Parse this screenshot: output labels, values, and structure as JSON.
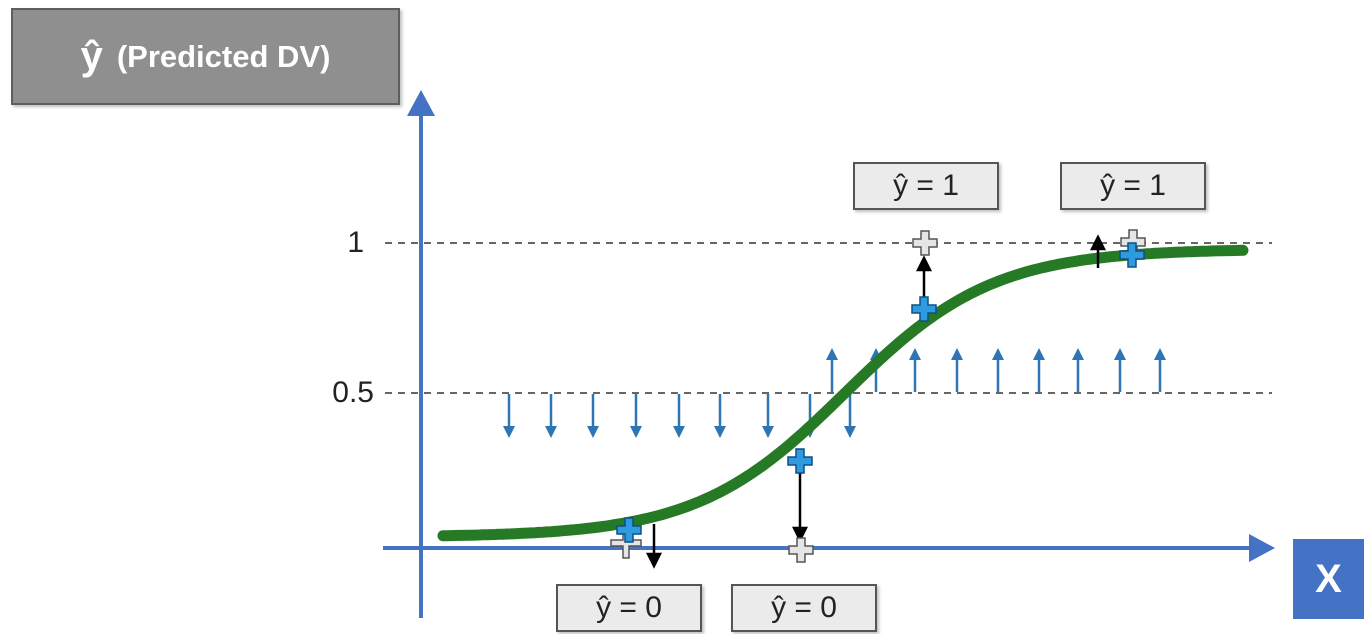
{
  "y_axis_label": {
    "symbol": "ŷ",
    "text": "(Predicted DV)"
  },
  "x_axis_label": "X",
  "ticks": {
    "one": "1",
    "half": "0.5"
  },
  "predictions": [
    {
      "id": "pred-1",
      "label": "ŷ = 0"
    },
    {
      "id": "pred-2",
      "label": "ŷ = 0"
    },
    {
      "id": "pred-3",
      "label": "ŷ = 1"
    },
    {
      "id": "pred-4",
      "label": "ŷ = 1"
    }
  ],
  "colors": {
    "axis": "#4472c4",
    "curve": "#267a26",
    "arrow": "#2e75b6",
    "point": "#2e9be0",
    "projected_point": "#e5e5e5",
    "label_bg": "#ebebeb",
    "header_bg": "#8f8f8f"
  }
}
